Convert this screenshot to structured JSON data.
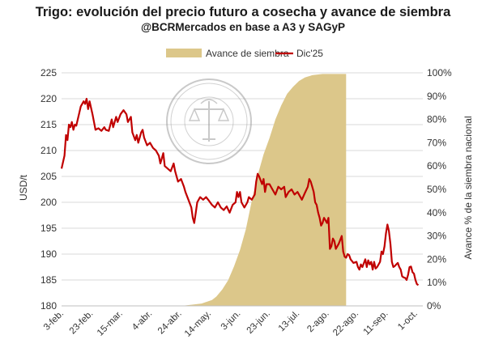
{
  "chart_data": {
    "type": "line+area",
    "title": "Trigo: evolución del precio futuro a cosecha y avance de siembra",
    "subtitle": "@BCRMercados en base a A3 y SAGyP",
    "ylabel_left": "USD/t",
    "ylabel_right": "Avance % de la siembra nacional",
    "ylim_left": [
      180,
      225
    ],
    "ylim_right": [
      0,
      100
    ],
    "yticks_left": [
      "180",
      "185",
      "190",
      "195",
      "200",
      "205",
      "210",
      "215",
      "220",
      "225"
    ],
    "yticks_right": [
      "0%",
      "10%",
      "20%",
      "30%",
      "40%",
      "50%",
      "60%",
      "70%",
      "80%",
      "90%",
      "100%"
    ],
    "x_days": [
      0,
      245
    ],
    "xticks": [
      {
        "day": 0,
        "label": "3-feb."
      },
      {
        "day": 20,
        "label": "23-feb."
      },
      {
        "day": 40,
        "label": "15-mar."
      },
      {
        "day": 60,
        "label": "4-abr."
      },
      {
        "day": 80,
        "label": "24-abr."
      },
      {
        "day": 100,
        "label": "14-may."
      },
      {
        "day": 120,
        "label": "3-jun."
      },
      {
        "day": 140,
        "label": "23-jun."
      },
      {
        "day": 160,
        "label": "13-jul."
      },
      {
        "day": 180,
        "label": "2-ago."
      },
      {
        "day": 200,
        "label": "22-ago."
      },
      {
        "day": 220,
        "label": "11-sep."
      },
      {
        "day": 240,
        "label": "1-oct."
      }
    ],
    "legend": {
      "position": "top",
      "area_label": "Avance de siembra",
      "line_label": "Dic'25"
    },
    "colors": {
      "area": "#dcc78a",
      "line": "#c00000",
      "grid": "#d9d9d9"
    },
    "series_area": {
      "name": "Avance de siembra",
      "points": [
        [
          81,
          0
        ],
        [
          88,
          0.5
        ],
        [
          95,
          1
        ],
        [
          102,
          2.5
        ],
        [
          105,
          4
        ],
        [
          109,
          7
        ],
        [
          113,
          11
        ],
        [
          117,
          17
        ],
        [
          121,
          24
        ],
        [
          125,
          33
        ],
        [
          129,
          45
        ],
        [
          133,
          56
        ],
        [
          137,
          65
        ],
        [
          141,
          72
        ],
        [
          145,
          80
        ],
        [
          149,
          86
        ],
        [
          153,
          91
        ],
        [
          157,
          94
        ],
        [
          161,
          96.5
        ],
        [
          165,
          98
        ],
        [
          170,
          99
        ],
        [
          177,
          99.5
        ],
        [
          193,
          99.5
        ],
        [
          193,
          0
        ]
      ]
    },
    "series_line": {
      "name": "Dic'25",
      "points": [
        [
          0,
          206.5
        ],
        [
          2,
          209
        ],
        [
          3,
          213
        ],
        [
          4,
          212
        ],
        [
          5,
          215
        ],
        [
          6,
          214.5
        ],
        [
          7,
          215.5
        ],
        [
          8,
          214
        ],
        [
          9,
          215
        ],
        [
          10,
          214.8
        ],
        [
          12,
          217.2
        ],
        [
          13,
          218.5
        ],
        [
          15,
          219.5
        ],
        [
          16,
          219
        ],
        [
          17,
          220
        ],
        [
          18,
          218
        ],
        [
          19,
          219.5
        ],
        [
          21,
          217
        ],
        [
          23,
          214
        ],
        [
          25,
          214.3
        ],
        [
          27,
          213.8
        ],
        [
          29,
          214.5
        ],
        [
          30,
          214
        ],
        [
          32,
          213.8
        ],
        [
          34,
          216
        ],
        [
          35,
          214.5
        ],
        [
          37,
          216.5
        ],
        [
          38,
          215.5
        ],
        [
          40,
          217
        ],
        [
          42,
          217.8
        ],
        [
          44,
          217
        ],
        [
          45,
          215.5
        ],
        [
          47,
          216.5
        ],
        [
          48,
          213.5
        ],
        [
          50,
          212
        ],
        [
          51,
          213
        ],
        [
          52,
          211.5
        ],
        [
          54,
          213.5
        ],
        [
          55,
          214
        ],
        [
          56,
          212.5
        ],
        [
          58,
          211
        ],
        [
          60,
          211.5
        ],
        [
          62,
          210.5
        ],
        [
          64,
          210
        ],
        [
          66,
          209
        ],
        [
          67,
          207.5
        ],
        [
          69,
          209.5
        ],
        [
          70,
          207
        ],
        [
          72,
          206.5
        ],
        [
          74,
          206
        ],
        [
          76,
          207.5
        ],
        [
          77,
          206
        ],
        [
          79,
          204
        ],
        [
          81,
          204.5
        ],
        [
          83,
          203
        ],
        [
          84,
          202
        ],
        [
          86,
          200.5
        ],
        [
          88,
          199
        ],
        [
          89,
          197
        ],
        [
          90,
          196
        ],
        [
          91,
          198
        ],
        [
          92,
          200
        ],
        [
          94,
          201
        ],
        [
          96,
          200.5
        ],
        [
          98,
          201
        ],
        [
          100,
          200.3
        ],
        [
          102,
          199.5
        ],
        [
          104,
          199
        ],
        [
          106,
          200
        ],
        [
          108,
          199
        ],
        [
          110,
          198.5
        ],
        [
          112,
          199.2
        ],
        [
          114,
          198
        ],
        [
          116,
          199.5
        ],
        [
          118,
          200
        ],
        [
          119,
          202
        ],
        [
          120,
          201
        ],
        [
          121,
          202
        ],
        [
          122,
          200
        ],
        [
          124,
          199
        ],
        [
          126,
          200
        ],
        [
          127,
          201
        ],
        [
          129,
          200.5
        ],
        [
          131,
          201.5
        ],
        [
          132,
          204
        ],
        [
          133,
          205.5
        ],
        [
          134,
          205
        ],
        [
          136,
          203.5
        ],
        [
          137,
          204.5
        ],
        [
          138,
          202
        ],
        [
          139,
          203.5
        ],
        [
          141,
          203.5
        ],
        [
          143,
          202.5
        ],
        [
          145,
          201.5
        ],
        [
          147,
          203
        ],
        [
          149,
          202.5
        ],
        [
          151,
          203
        ],
        [
          152,
          201
        ],
        [
          154,
          202
        ],
        [
          156,
          202.5
        ],
        [
          158,
          201.5
        ],
        [
          160,
          202
        ],
        [
          162,
          201
        ],
        [
          163,
          200.5
        ],
        [
          165,
          201.8
        ],
        [
          167,
          203
        ],
        [
          168,
          204.5
        ],
        [
          169,
          204
        ],
        [
          170,
          203
        ],
        [
          171,
          202
        ],
        [
          172,
          200
        ],
        [
          173,
          199.5
        ],
        [
          174,
          198
        ],
        [
          175,
          197
        ],
        [
          176,
          195.5
        ],
        [
          177,
          196
        ],
        [
          178,
          197
        ],
        [
          179,
          196.5
        ],
        [
          180,
          196
        ],
        [
          181,
          197
        ],
        [
          182,
          191
        ],
        [
          183,
          191.5
        ],
        [
          184,
          193
        ],
        [
          185,
          192.5
        ],
        [
          186,
          191
        ],
        [
          188,
          192
        ],
        [
          190,
          193.5
        ],
        [
          191,
          190.5
        ],
        [
          192,
          189.5
        ],
        [
          193,
          189.3
        ],
        [
          194,
          190
        ],
        [
          195,
          189.8
        ],
        [
          196,
          189
        ],
        [
          198,
          188.3
        ],
        [
          200,
          188.5
        ],
        [
          201,
          187.5
        ],
        [
          202,
          187
        ],
        [
          203,
          188
        ],
        [
          204,
          187.5
        ],
        [
          206,
          189
        ],
        [
          207,
          187.5
        ],
        [
          208,
          188.8
        ],
        [
          209,
          188
        ],
        [
          210,
          188.5
        ],
        [
          211,
          187
        ],
        [
          212,
          188.5
        ],
        [
          213,
          187.2
        ],
        [
          214,
          187.5
        ],
        [
          216,
          188.5
        ],
        [
          217,
          190.5
        ],
        [
          218,
          190
        ],
        [
          219,
          191.5
        ],
        [
          220,
          194
        ],
        [
          221,
          195.7
        ],
        [
          222,
          194.5
        ],
        [
          223,
          192
        ],
        [
          224,
          188.5
        ],
        [
          225,
          187.5
        ],
        [
          226,
          187.7
        ],
        [
          227,
          188
        ],
        [
          228,
          188.3
        ],
        [
          229,
          187.5
        ],
        [
          230,
          187
        ],
        [
          231,
          185.7
        ],
        [
          232,
          185.5
        ],
        [
          233,
          185.4
        ],
        [
          234,
          185
        ],
        [
          235,
          186
        ],
        [
          236,
          187.5
        ],
        [
          237,
          187.6
        ],
        [
          238,
          186.5
        ],
        [
          239,
          186.2
        ],
        [
          240,
          185
        ],
        [
          241,
          184.2
        ],
        [
          242,
          184
        ]
      ]
    }
  }
}
